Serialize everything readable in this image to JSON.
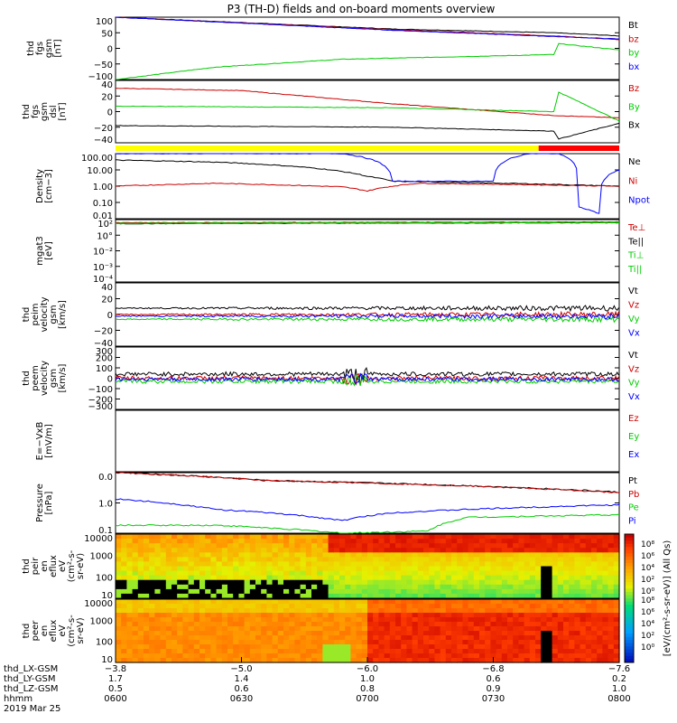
{
  "title": "P3 (TH-D) fields and on-board moments overview",
  "colors": {
    "black": "#000000",
    "red": "#cc0000",
    "green": "#00cc00",
    "blue": "#0000ff",
    "yellow": "#ffff00",
    "barRed": "#ff0000"
  },
  "chart_data": [
    {
      "type": "line",
      "panel": "fgs_gsm",
      "ylabel": [
        "thd",
        "fgs",
        "gsm",
        "[nT]"
      ],
      "ylim": [
        -100,
        100
      ],
      "ticks": [
        "100",
        "50",
        "0",
        "−50",
        "−100"
      ],
      "series": [
        {
          "name": "Bt",
          "color": "black",
          "x": [
            0,
            0.55,
            0.87,
            1
          ],
          "y": [
            100,
            62,
            50,
            40
          ]
        },
        {
          "name": "bz",
          "color": "red",
          "x": [
            0,
            0.55,
            0.87,
            1
          ],
          "y": [
            100,
            60,
            40,
            28
          ]
        },
        {
          "name": "by",
          "color": "green",
          "x": [
            0,
            0.2,
            0.45,
            0.87,
            0.88,
            1
          ],
          "y": [
            -100,
            -60,
            -35,
            -20,
            15,
            -5
          ]
        },
        {
          "name": "bx",
          "color": "blue",
          "x": [
            0,
            0.55,
            0.87,
            1
          ],
          "y": [
            100,
            58,
            38,
            30
          ]
        }
      ]
    },
    {
      "type": "line",
      "panel": "fgs_gse",
      "ylabel": [
        "thd",
        "fgs",
        "gsm",
        "dsl",
        "[nT]"
      ],
      "ylim": [
        -40,
        40
      ],
      "ticks": [
        "40",
        "20",
        "0",
        "−20",
        "−40"
      ],
      "series": [
        {
          "name": "Bz",
          "color": "red",
          "x": [
            0,
            0.25,
            0.55,
            0.87,
            1
          ],
          "y": [
            30,
            27,
            10,
            -5,
            -8
          ]
        },
        {
          "name": "By",
          "color": "green",
          "x": [
            0,
            0.55,
            0.87,
            0.88,
            1
          ],
          "y": [
            7,
            5,
            0,
            25,
            -12
          ]
        },
        {
          "name": "Bx",
          "color": "black",
          "x": [
            0,
            0.55,
            0.87,
            0.88,
            1
          ],
          "y": [
            -18,
            -20,
            -25,
            -35,
            -15
          ]
        }
      ]
    },
    {
      "type": "line",
      "panel": "density",
      "ylabel": [
        "Density",
        "[cm−3]"
      ],
      "scale": "log",
      "ylim": [
        0.01,
        100
      ],
      "ticks": [
        "100.00",
        "10.00",
        "1.00",
        "0.10",
        "0.01"
      ],
      "series": [
        {
          "name": "Ne",
          "color": "black",
          "x": [
            0,
            0.2,
            0.45,
            0.5,
            0.55,
            1
          ],
          "y": [
            40,
            30,
            8,
            4,
            2,
            1
          ]
        },
        {
          "name": "Ni",
          "color": "red",
          "x": [
            0,
            0.2,
            0.45,
            0.5,
            0.6,
            1
          ],
          "y": [
            1,
            1.5,
            0.9,
            0.5,
            1.5,
            1
          ]
        },
        {
          "name": "Npot",
          "color": "blue",
          "x": [
            0.45,
            0.55,
            0.75,
            0.82,
            0.88,
            0.92,
            0.96,
            1
          ],
          "y": [
            100,
            2,
            2,
            100,
            100,
            0.05,
            0.02,
            10
          ]
        }
      ]
    },
    {
      "type": "line",
      "panel": "temperature",
      "ylabel": [
        "mgat3",
        "[eV]"
      ],
      "scale": "log",
      "ylim": [
        0.0001,
        100
      ],
      "ticks": [
        "10²",
        "10°",
        "10⁻²",
        "10⁻³",
        "10⁻⁴"
      ],
      "series": [
        {
          "name": "Te⊥",
          "color": "red",
          "x": [
            0,
            1
          ],
          "y": [
            50,
            60
          ]
        },
        {
          "name": "Te||",
          "color": "black",
          "x": [
            0,
            1
          ],
          "y": [
            40,
            50
          ]
        },
        {
          "name": "Ti⊥",
          "color": "green",
          "x": [
            0,
            1
          ],
          "y": [
            45,
            55
          ]
        },
        {
          "name": "Ti||",
          "color": "green",
          "x": [
            0,
            1
          ],
          "y": [
            42,
            52
          ]
        }
      ]
    },
    {
      "type": "line",
      "panel": "peim_velocity",
      "ylabel": [
        "thd",
        "peim",
        "velocity",
        "gsm",
        "[km/s]"
      ],
      "ylim": [
        -40,
        40
      ],
      "ticks": [
        "40",
        "20",
        "0",
        "−20",
        "−40"
      ],
      "series": [
        {
          "name": "Vt",
          "color": "black"
        },
        {
          "name": "Vz",
          "color": "red"
        },
        {
          "name": "Vy",
          "color": "green"
        },
        {
          "name": "Vx",
          "color": "blue"
        }
      ]
    },
    {
      "type": "line",
      "panel": "peem_velocity",
      "ylabel": [
        "thd",
        "peem",
        "velocity",
        "gsm",
        "[km/s]"
      ],
      "ylim": [
        -300,
        300
      ],
      "ticks": [
        "300",
        "200",
        "100",
        "0",
        "−100",
        "−200",
        "−300"
      ],
      "series": [
        {
          "name": "Vt",
          "color": "black"
        },
        {
          "name": "Vz",
          "color": "red"
        },
        {
          "name": "Vy",
          "color": "green"
        },
        {
          "name": "Vx",
          "color": "blue"
        }
      ]
    },
    {
      "type": "line",
      "panel": "efield",
      "ylabel": [
        "E=−VxB",
        "[mV/m]"
      ],
      "series": [
        {
          "name": "Ez",
          "color": "red"
        },
        {
          "name": "Ey",
          "color": "green"
        },
        {
          "name": "Ex",
          "color": "blue"
        }
      ]
    },
    {
      "type": "line",
      "panel": "pressure",
      "ylabel": [
        "Pressure",
        "[nPa]"
      ],
      "scale": "log",
      "ylim": [
        0.05,
        10
      ],
      "ticks": [
        "0.0",
        "1.0",
        "0.1"
      ],
      "series": [
        {
          "name": "Pt",
          "color": "black",
          "x": [
            0,
            0.3,
            1
          ],
          "y": [
            10,
            5,
            1.8
          ]
        },
        {
          "name": "Pb",
          "color": "red",
          "x": [
            0,
            0.3,
            1
          ],
          "y": [
            10,
            5,
            1.7
          ]
        },
        {
          "name": "Pe",
          "color": "green",
          "x": [
            0,
            0.2,
            0.45,
            0.62,
            0.7,
            1
          ],
          "y": [
            0.1,
            0.1,
            0.05,
            0.06,
            0.2,
            0.25
          ]
        },
        {
          "name": "Pi",
          "color": "blue",
          "x": [
            0,
            0.2,
            0.4,
            0.45,
            0.55,
            1
          ],
          "y": [
            1,
            0.4,
            0.2,
            0.15,
            0.3,
            0.6
          ]
        }
      ]
    },
    {
      "type": "heatmap",
      "panel": "peir_en_eflux",
      "ylabel": [
        "thd",
        "peir",
        "en",
        "eflux",
        "eV",
        "(cm²-s-",
        "sr-eV)"
      ],
      "scale": "log",
      "ylim": [
        10,
        10000
      ],
      "ticks": [
        "10000",
        "1000",
        "100",
        "10"
      ]
    },
    {
      "type": "heatmap",
      "panel": "peer_en_eflux",
      "ylabel": [
        "thd",
        "peer",
        "en",
        "eflux",
        "eV",
        "(cm²-s-",
        "sr-eV)"
      ],
      "scale": "log",
      "ylim": [
        10,
        10000
      ],
      "ticks": [
        "10000",
        "1000",
        "100",
        "10"
      ]
    }
  ],
  "colorbar": {
    "label": "[eV/(cm²-s-sr-eV)] (All Qs)",
    "ticks": [
      "10⁸",
      "10⁶",
      "10⁴",
      "10²",
      "10⁰"
    ],
    "ticks2": [
      "10⁸",
      "10⁶",
      "10⁴",
      "10²",
      "10⁰"
    ]
  },
  "x_axis": {
    "row_labels": [
      "thd_LX-GSM",
      "thd_LY-GSM",
      "thd_LZ-GSM",
      "hhmm",
      "2019 Mar 25"
    ],
    "columns": [
      {
        "lx": "−3.8",
        "ly": "1.7",
        "lz": "0.5",
        "hhmm": "0600"
      },
      {
        "lx": "−5.0",
        "ly": "1.4",
        "lz": "0.6",
        "hhmm": "0630"
      },
      {
        "lx": "−6.0",
        "ly": "1.0",
        "lz": "0.8",
        "hhmm": "0700"
      },
      {
        "lx": "−6.8",
        "ly": "0.6",
        "lz": "0.9",
        "hhmm": "0730"
      },
      {
        "lx": "−7.6",
        "ly": "0.2",
        "lz": "1.0",
        "hhmm": "0800"
      }
    ]
  }
}
